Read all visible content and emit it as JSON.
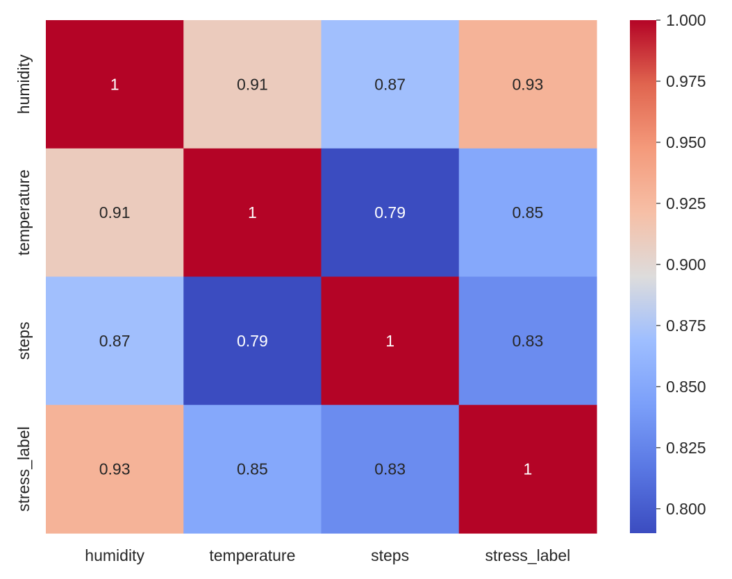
{
  "chart_data": {
    "type": "heatmap",
    "title": "",
    "xlabel": "",
    "ylabel": "",
    "x_categories": [
      "humidity",
      "temperature",
      "steps",
      "stress_label"
    ],
    "y_categories": [
      "humidity",
      "temperature",
      "steps",
      "stress_label"
    ],
    "values": [
      [
        1,
        0.91,
        0.87,
        0.93
      ],
      [
        0.91,
        1,
        0.79,
        0.85
      ],
      [
        0.87,
        0.79,
        1,
        0.83
      ],
      [
        0.93,
        0.85,
        0.83,
        1
      ]
    ],
    "cell_labels": [
      [
        "1",
        "0.91",
        "0.87",
        "0.93"
      ],
      [
        "0.91",
        "1",
        "0.79",
        "0.85"
      ],
      [
        "0.87",
        "0.79",
        "1",
        "0.83"
      ],
      [
        "0.93",
        "0.85",
        "0.83",
        "1"
      ]
    ],
    "colormap": "coolwarm",
    "colorbar": {
      "range": [
        0.79,
        1.0
      ],
      "ticks": [
        0.8,
        0.825,
        0.85,
        0.875,
        0.9,
        0.925,
        0.95,
        0.975,
        1.0
      ],
      "tick_labels": [
        "0.800",
        "0.825",
        "0.850",
        "0.875",
        "0.900",
        "0.925",
        "0.950",
        "0.975",
        "1.000"
      ]
    },
    "grid": false,
    "legend": "colorbar-right"
  }
}
